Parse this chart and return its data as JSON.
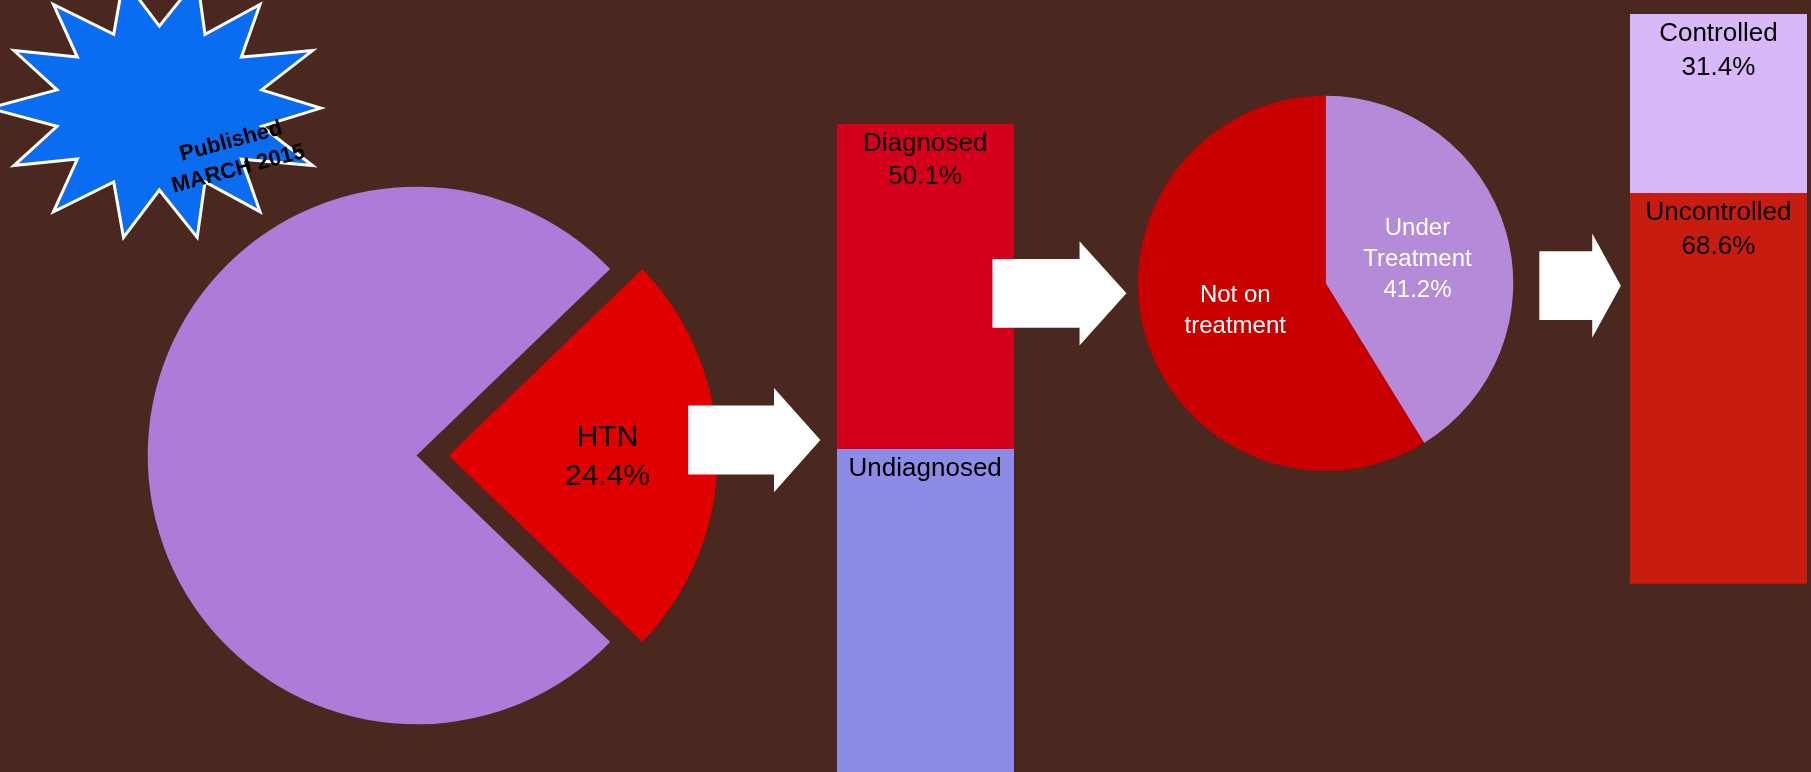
{
  "chart_data": [
    {
      "type": "pie",
      "categories": [
        "HTN",
        null
      ],
      "values": [
        24.4,
        75.6
      ],
      "colors": [
        "#e00000",
        "#b07ad8"
      ],
      "value_labels": [
        "24.4%",
        null
      ],
      "annotations": [
        "Published\nMARCH 2015"
      ]
    },
    {
      "type": "bar",
      "stacked": true,
      "categories": [
        null
      ],
      "ylim": [
        0,
        100
      ],
      "series": [
        {
          "name": "Undiagnosed",
          "color": "#8c8ce6",
          "values": [
            49.9
          ],
          "value_labels": [
            null
          ]
        },
        {
          "name": "Diagnosed",
          "color": "#d4001c",
          "values": [
            50.1
          ],
          "value_labels": [
            "50.1%"
          ]
        }
      ]
    },
    {
      "type": "pie",
      "categories": [
        "Under\nTreatment",
        "Not on\ntreatment"
      ],
      "values": [
        41.2,
        58.8
      ],
      "colors": [
        "#b58ad8",
        "#c80000"
      ],
      "value_labels": [
        "41.2%",
        null
      ]
    },
    {
      "type": "bar",
      "stacked": true,
      "categories": [
        null
      ],
      "ylim": [
        0,
        100
      ],
      "series": [
        {
          "name": "Uncontrolled",
          "color": "#c81c10",
          "values": [
            68.6
          ],
          "value_labels": [
            "68.6%"
          ]
        },
        {
          "name": "Controlled",
          "color": "#d8b8f8",
          "values": [
            31.4
          ],
          "value_labels": [
            "31.4%"
          ]
        }
      ]
    }
  ]
}
